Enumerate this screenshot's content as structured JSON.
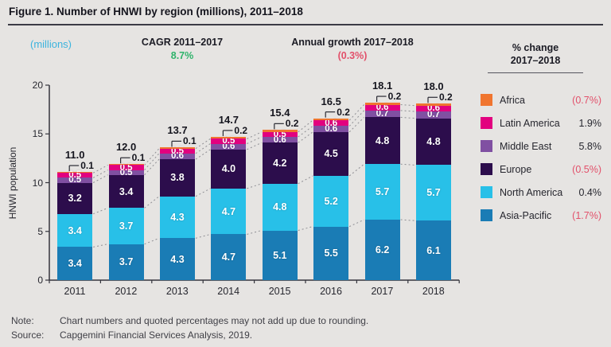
{
  "header": {
    "title": "Figure 1. Number of HNWI by region (millions), 2011–2018"
  },
  "annotations": {
    "unit_label": "(millions)",
    "cagr_label": "CAGR 2011–2017",
    "cagr_value": "8.7%",
    "growth_label": "Annual growth 2017–2018",
    "growth_value": "(0.3%)"
  },
  "legend": {
    "header_line1": "% change",
    "header_line2": "2017–2018"
  },
  "chart_data": {
    "type": "bar",
    "stacked": true,
    "title": "Figure 1. Number of HNWI by region (millions), 2011–2018",
    "xlabel": "",
    "ylabel": "HNWI population",
    "ylim": [
      0,
      20
    ],
    "yticks": [
      0,
      5,
      10,
      15,
      20
    ],
    "grid": false,
    "legend_position": "right",
    "categories": [
      "2011",
      "2012",
      "2013",
      "2014",
      "2015",
      "2016",
      "2017",
      "2018"
    ],
    "totals": [
      11.0,
      12.0,
      13.7,
      14.7,
      15.4,
      16.5,
      18.1,
      18.0
    ],
    "series": [
      {
        "name": "Asia-Pacific",
        "color": "#1a7cb5",
        "pct_change": "(1.7%)",
        "values": [
          3.4,
          3.7,
          4.3,
          4.7,
          5.1,
          5.5,
          6.2,
          6.1
        ]
      },
      {
        "name": "North America",
        "color": "#28c0e8",
        "pct_change": "0.4%",
        "values": [
          3.4,
          3.7,
          4.3,
          4.7,
          4.8,
          5.2,
          5.7,
          5.7
        ]
      },
      {
        "name": "Europe",
        "color": "#2c0d4c",
        "pct_change": "(0.5%)",
        "values": [
          3.2,
          3.4,
          3.8,
          4.0,
          4.2,
          4.5,
          4.8,
          4.8
        ]
      },
      {
        "name": "Middle East",
        "color": "#8050a2",
        "pct_change": "5.8%",
        "values": [
          0.5,
          0.5,
          0.6,
          0.6,
          0.6,
          0.6,
          0.7,
          0.7
        ]
      },
      {
        "name": "Latin America",
        "color": "#e2017f",
        "pct_change": "1.9%",
        "values": [
          0.5,
          0.5,
          0.5,
          0.5,
          0.5,
          0.6,
          0.6,
          0.6
        ]
      },
      {
        "name": "Africa",
        "color": "#f0752f",
        "pct_change": "(0.7%)",
        "values": [
          0.1,
          0.1,
          0.1,
          0.2,
          0.2,
          0.2,
          0.2,
          0.2
        ]
      }
    ],
    "callout_series": "Africa"
  },
  "note": {
    "label": "Note:",
    "text": "Chart numbers and quoted percentages may not add up due to rounding."
  },
  "source": {
    "label": "Source:",
    "text": "Capgemini Financial Services Analysis, 2019."
  }
}
